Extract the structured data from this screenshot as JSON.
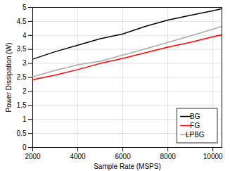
{
  "chart_data": {
    "type": "line",
    "xlabel": "Sample Rate (MSPS)",
    "ylabel": "Power Dissipation (W)",
    "x": [
      2000,
      3000,
      4000,
      5000,
      6000,
      7000,
      8000,
      9000,
      10000,
      10400
    ],
    "series": [
      {
        "name": "BG",
        "color": "#000000",
        "values": [
          3.15,
          3.42,
          3.65,
          3.88,
          4.05,
          4.32,
          4.55,
          4.72,
          4.88,
          4.95
        ]
      },
      {
        "name": "FG",
        "color": "#ff0000",
        "values": [
          2.42,
          2.58,
          2.78,
          3.0,
          3.18,
          3.38,
          3.58,
          3.75,
          3.95,
          4.02
        ]
      },
      {
        "name": "LPBG",
        "color": "#aaaaaa",
        "values": [
          2.52,
          2.75,
          2.95,
          3.08,
          3.3,
          3.52,
          3.75,
          3.98,
          4.22,
          4.32
        ]
      }
    ],
    "xlim": [
      2000,
      10400
    ],
    "ylim": [
      0,
      5
    ],
    "xticks": [
      2000,
      4000,
      6000,
      8000,
      10000
    ],
    "yticks": [
      0,
      0.5,
      1,
      1.5,
      2,
      2.5,
      3,
      3.5,
      4,
      4.5,
      5
    ],
    "grid": true,
    "legend": "lower right"
  }
}
